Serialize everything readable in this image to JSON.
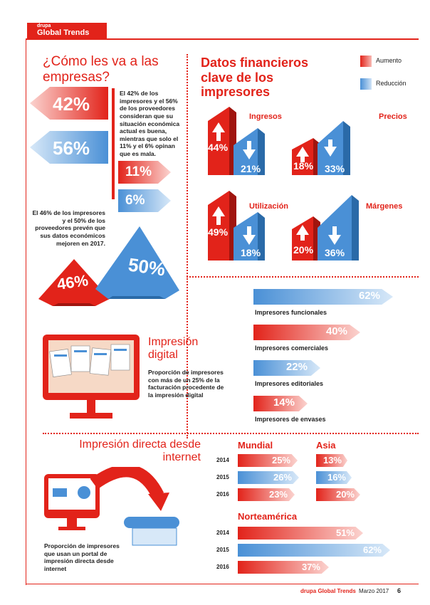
{
  "header": {
    "brand": "drupa",
    "title": "Global Trends"
  },
  "sec1": {
    "title": "¿Cómo les va a las empresas?",
    "pct_a": "42%",
    "pct_b": "56%",
    "pct_c": "11%",
    "pct_d": "6%",
    "text1": "El 42% de los impresores y el 56% de los proveedores consideran que su situación económica actual es buena, mientras que solo el 11% y el 6% opinan que es mala.",
    "text2": "El 46% de los impresores y el 50% de los proveedores prevén que sus datos económicos mejoren en 2017.",
    "pct_e": "46%",
    "pct_f": "50%"
  },
  "sec2": {
    "title": "Datos financieros clave de los impresores",
    "legend_up": "Aumento",
    "legend_down": "Reducción",
    "items": [
      {
        "label": "Ingresos",
        "up": "44%",
        "down": "21%"
      },
      {
        "label": "Precios",
        "up": "18%",
        "down": "33%"
      },
      {
        "label": "Utilización",
        "up": "49%",
        "down": "18%"
      },
      {
        "label": "Márgenes",
        "up": "20%",
        "down": "36%"
      }
    ]
  },
  "sec3": {
    "title": "Impresión digital",
    "text": "Proporción de impresores con más de un 25% de la facturación procedente de la impresión digital",
    "bars": [
      {
        "value": "62%",
        "label": "Impresores funcionales",
        "color": "#4a90d6",
        "num": 62
      },
      {
        "value": "40%",
        "label": "Impresores comerciales",
        "color": "#e2231a",
        "num": 40
      },
      {
        "value": "22%",
        "label": "Impresores editoriales",
        "color": "#4a90d6",
        "num": 22
      },
      {
        "value": "14%",
        "label": "Impresores de envases",
        "color": "#e2231a",
        "num": 14
      }
    ]
  },
  "sec4": {
    "title": "Impresión directa desde internet",
    "text": "Proporción de impresores que usan un portal de impresión directa desde internet",
    "mundial": {
      "label": "Mundial",
      "years": [
        "2014",
        "2015",
        "2016"
      ],
      "values": [
        "25%",
        "26%",
        "23%"
      ]
    },
    "asia": {
      "label": "Asia",
      "values": [
        "13%",
        "16%",
        "20%"
      ]
    },
    "na": {
      "label": "Norteamérica",
      "years": [
        "2014",
        "2015",
        "2016"
      ],
      "values": [
        "51%",
        "62%",
        "37%"
      ]
    }
  },
  "footer": {
    "brand": "drupa Global Trends",
    "date": "Marzo 2017",
    "page": "6"
  },
  "colors": {
    "red": "#e2231a",
    "blue": "#4a90d6"
  }
}
